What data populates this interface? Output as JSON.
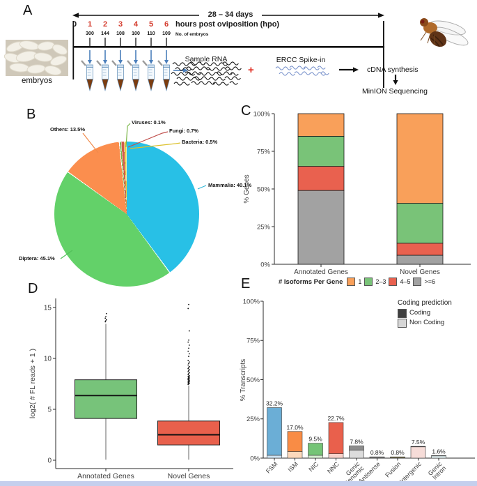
{
  "panel_labels": {
    "a": "A",
    "b": "B",
    "c": "C",
    "d": "D",
    "e": "E"
  },
  "panel_a": {
    "duration_label": "28 – 34 days",
    "timeline_numbers": [
      "0",
      "1",
      "2",
      "3",
      "4",
      "5",
      "6"
    ],
    "timeline_unit_label": "hours post oviposition (hpo)",
    "embryo_counts": [
      "300",
      "144",
      "108",
      "100",
      "110",
      "109"
    ],
    "embryo_counts_label": "No. of embryos",
    "embryos_label": "embryos",
    "sample_rna_label": "Sample RNA",
    "plus_sign": "+",
    "ercc_label": "ERCC Spike-in",
    "cdna_label": "cDNA synthesis",
    "minion_label": "MinION Sequencing",
    "colors": {
      "highlight_red": "#d43c2e",
      "arrow_blue": "#4a7ebb"
    }
  },
  "chart_data": [
    {
      "panel": "B",
      "type": "pie",
      "slices": [
        {
          "label": "Mammalia",
          "value": 40.1,
          "display": "Mammalia: 40.1%",
          "color": "#28c0e6",
          "line_color": "#35b8d8"
        },
        {
          "label": "Diptera",
          "value": 45.1,
          "display": "Diptera: 45.1%",
          "color": "#63d169",
          "line_color": "#53c05a"
        },
        {
          "label": "Others",
          "value": 13.5,
          "display": "Others: 13.5%",
          "color": "#fb8e4e",
          "line_color": "#f08a4b"
        },
        {
          "label": "Viruses",
          "value": 0.1,
          "display": "Viruses: 0.1%",
          "color": "#7ab648",
          "line_color": "#7ab648"
        },
        {
          "label": "Fungi",
          "value": 0.7,
          "display": "Fungi: 0.7%",
          "color": "#d05c4b",
          "line_color": "#c0504d"
        },
        {
          "label": "Bacteria",
          "value": 0.5,
          "display": "Bacteria: 0.5%",
          "color": "#ecd13e",
          "line_color": "#dcc12e"
        }
      ]
    },
    {
      "panel": "C",
      "type": "bar",
      "stacked": true,
      "ylabel": "% Genes",
      "categories": [
        "Annotated Genes",
        "Novel Genes"
      ],
      "ytick_labels": [
        "0%",
        "25%",
        "50%",
        "75%",
        "100%"
      ],
      "ytick_values": [
        0,
        25,
        50,
        75,
        100
      ],
      "ylim": [
        0,
        100
      ],
      "legend_title": "# Isoforms Per Gene",
      "series": [
        {
          "name": "1",
          "color": "#f9a05a",
          "values": [
            15,
            59.5
          ]
        },
        {
          "name": "2–3",
          "color": "#79c378",
          "values": [
            20,
            26.5
          ]
        },
        {
          "name": "4–5",
          "color": "#e9614f",
          "values": [
            16,
            8
          ]
        },
        {
          "name": ">=6",
          "color": "#a2a2a2",
          "values": [
            49,
            6
          ]
        }
      ]
    },
    {
      "panel": "D",
      "type": "boxplot",
      "ylabel": "log2( # FL reads + 1 )",
      "categories": [
        "Annotated Genes",
        "Novel Genes"
      ],
      "ytick_values": [
        0,
        5,
        10,
        15
      ],
      "ylim": [
        0,
        15.5
      ],
      "boxes": [
        {
          "category": "Annotated Genes",
          "color": "#77c37a",
          "whisker_low": 0.05,
          "q1": 4.1,
          "median": 6.35,
          "q3": 7.9,
          "whisker_high": 13.4,
          "outliers": [
            13.6,
            13.7,
            13.8,
            13.95,
            14.1,
            14.4
          ]
        },
        {
          "category": "Novel Genes",
          "color": "#e8604c",
          "whisker_low": 0.05,
          "q1": 1.5,
          "median": 2.5,
          "q3": 3.85,
          "whisker_high": 7.35,
          "outliers": [
            7.45,
            7.5,
            7.55,
            7.6,
            7.65,
            7.7,
            7.75,
            7.8,
            7.85,
            7.9,
            7.95,
            8.0,
            8.05,
            8.1,
            8.15,
            8.2,
            8.25,
            8.3,
            8.4,
            8.5,
            8.6,
            8.7,
            8.8,
            8.9,
            9.0,
            9.1,
            9.2,
            9.35,
            9.5,
            9.65,
            9.8,
            10.2,
            10.45,
            10.7,
            11.0,
            11.3,
            11.6,
            11.8,
            12.7,
            14.9,
            15.3
          ]
        }
      ]
    },
    {
      "panel": "E",
      "type": "bar",
      "stacked": true,
      "ylabel": "% Transcripts",
      "ytick_labels": [
        "0%",
        "25%",
        "50%",
        "75%",
        "100%"
      ],
      "ytick_values": [
        0,
        25,
        50,
        75,
        100
      ],
      "ylim": [
        0,
        100
      ],
      "legend_title": "Coding prediction",
      "legend": [
        {
          "label": "Coding",
          "color": "#3f3f3f"
        },
        {
          "label": "Non Coding",
          "color": "#d6d6d6"
        }
      ],
      "category_label_lines": [
        [
          "FSM"
        ],
        [
          "ISM"
        ],
        [
          "NIC"
        ],
        [
          "NNC"
        ],
        [
          "Genic",
          "Genomic"
        ],
        [
          "Antisense"
        ],
        [
          "Fusion"
        ],
        [
          "Intergenic"
        ],
        [
          "Genic",
          "Intron"
        ]
      ],
      "bars": [
        {
          "category": "FSM",
          "total": 32.2,
          "display": "32.2%",
          "coding": 30.4,
          "non_coding": 1.8,
          "color_coding": "#6baed6",
          "color_non_coding": "#cfe3f2"
        },
        {
          "category": "ISM",
          "total": 17.0,
          "display": "17.0%",
          "coding": 12.8,
          "non_coding": 4.2,
          "color_coding": "#f98c45",
          "color_non_coding": "#fcd9bc"
        },
        {
          "category": "NIC",
          "total": 9.5,
          "display": "9.5%",
          "coding": 7.7,
          "non_coding": 1.8,
          "color_coding": "#74c476",
          "color_non_coding": "#d5edd0"
        },
        {
          "category": "NNC",
          "total": 22.7,
          "display": "22.7%",
          "coding": 19.9,
          "non_coding": 2.8,
          "color_coding": "#e9604c",
          "color_non_coding": "#f8d2ca"
        },
        {
          "category": "Genic Genomic",
          "total": 7.8,
          "display": "7.8%",
          "coding": 2.8,
          "non_coding": 5.0,
          "color_coding": "#8c8c8c",
          "color_non_coding": "#dcdcdc"
        },
        {
          "category": "Antisense",
          "total": 0.8,
          "display": "0.8%",
          "coding": 0.3,
          "non_coding": 0.5,
          "color_coding": "#8c8c8c",
          "color_non_coding": "#cfcfcf"
        },
        {
          "category": "Fusion",
          "total": 0.8,
          "display": "0.8%",
          "coding": 0.4,
          "non_coding": 0.4,
          "color_coding": "#a89a3a",
          "color_non_coding": "#ded387"
        },
        {
          "category": "Intergenic",
          "total": 7.5,
          "display": "7.5%",
          "coding": 0.3,
          "non_coding": 7.2,
          "color_coding": "#8b4a42",
          "color_non_coding": "#f6dcd8"
        },
        {
          "category": "Genic Intron",
          "total": 1.6,
          "display": "1.6%",
          "coding": 0.2,
          "non_coding": 1.4,
          "color_coding": "#4fb6be",
          "color_non_coding": "#e6f5f6"
        }
      ]
    }
  ]
}
